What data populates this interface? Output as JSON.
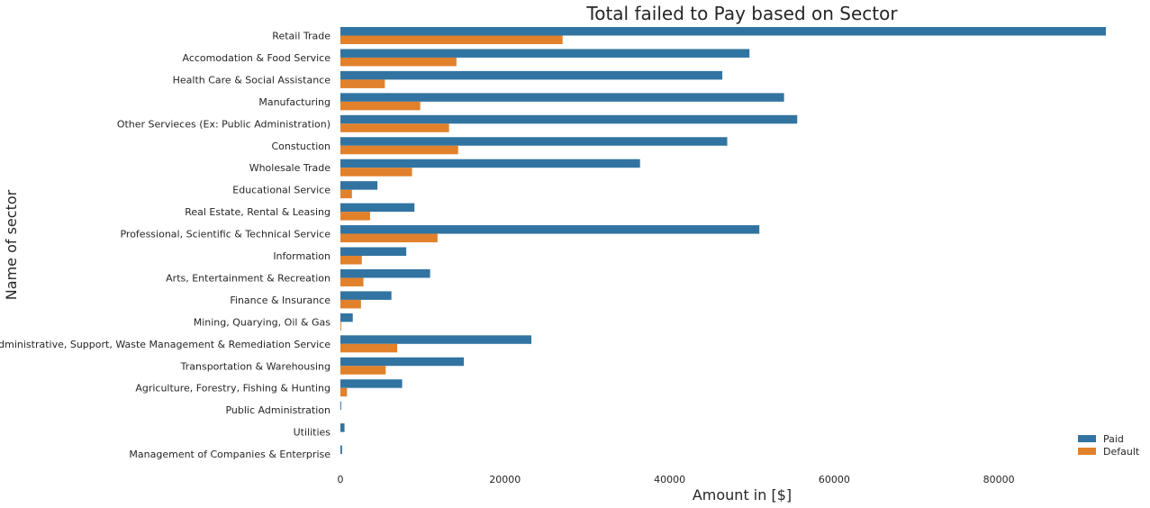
{
  "chart_data": {
    "type": "bar",
    "orientation": "horizontal",
    "title": "Total failed to Pay based on Sector",
    "xlabel": "Amount in [$]",
    "ylabel": "Name of sector",
    "xlim": [
      0,
      93000
    ],
    "xticks": [
      0,
      20000,
      40000,
      60000,
      80000
    ],
    "grid": false,
    "legend_position": "bottom-right",
    "categories": [
      "Retail Trade",
      "Accomodation & Food Service",
      "Health Care & Social Assistance",
      "Manufacturing",
      "Other Servieces (Ex: Public Administration)",
      "Constuction",
      "Wholesale Trade",
      "Educational Service",
      "Real Estate, Rental & Leasing",
      "Professional, Scientific & Technical Service",
      "Information",
      "Arts, Entertainment & Recreation",
      "Finance & Insurance",
      "Mining, Quarying, Oil & Gas",
      "Administrative, Support, Waste Management & Remediation Service",
      "Transportation & Warehousing",
      "Agriculture, Forestry, Fishing & Hunting",
      "Public Administration",
      "Utilities",
      "Management of Companies & Enterprise"
    ],
    "series": [
      {
        "name": "Paid",
        "color": "#3274a1",
        "values": [
          93000,
          49700,
          46400,
          53900,
          55500,
          47000,
          36400,
          4500,
          9000,
          50900,
          8000,
          10900,
          6200,
          1500,
          23200,
          15000,
          7500,
          100,
          500,
          200
        ]
      },
      {
        "name": "Default",
        "color": "#e1812c",
        "values": [
          27000,
          14100,
          5400,
          9700,
          13200,
          14300,
          8700,
          1400,
          3600,
          11800,
          2600,
          2800,
          2500,
          100,
          6900,
          5500,
          800,
          0,
          0,
          0
        ]
      }
    ]
  }
}
